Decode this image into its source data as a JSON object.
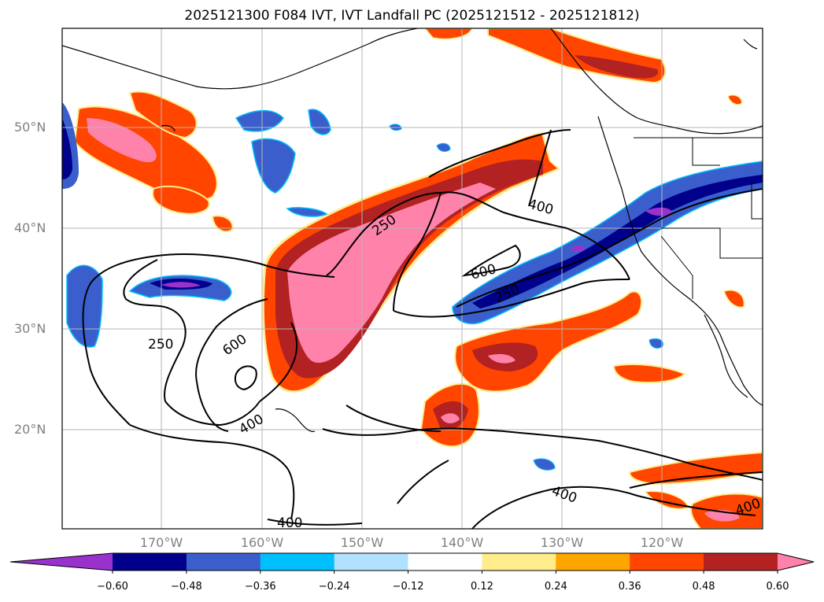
{
  "title": "2025121300 F084 IVT, IVT Landfall PC (2025121512 - 2025121812)",
  "lat_labels": [
    "50°N",
    "40°N",
    "30°N",
    "20°N"
  ],
  "lon_labels": [
    "170°W",
    "160°W",
    "150°W",
    "140°W",
    "130°W",
    "120°W"
  ],
  "contour_labels": [
    "250",
    "250",
    "250",
    "400",
    "400",
    "400",
    "400",
    "400",
    "600",
    "600"
  ],
  "colorbar": {
    "ticks": [
      "−0.60",
      "−0.48",
      "−0.36",
      "−0.24",
      "−0.12",
      "0.12",
      "0.24",
      "0.36",
      "0.48",
      "0.60"
    ],
    "colors": [
      "#9932CC",
      "#00008B",
      "#3A5FCD",
      "#00BFFF",
      "#B0E2FF",
      "#FFFFFF",
      "#FFEC8B",
      "#FFA500",
      "#FF4500",
      "#B22222",
      "#FF82AB"
    ]
  },
  "palette": {
    "strong_pos": "#FF82AB",
    "pos_high": "#B22222",
    "pos_mid": "#FF4500",
    "pos_low": "#FFA500",
    "pos_min": "#FFEC8B",
    "neg_min": "#B0E2FF",
    "neg_low": "#00BFFF",
    "neg_mid": "#3A5FCD",
    "neg_high": "#00008B",
    "strong_neg": "#9932CC"
  }
}
